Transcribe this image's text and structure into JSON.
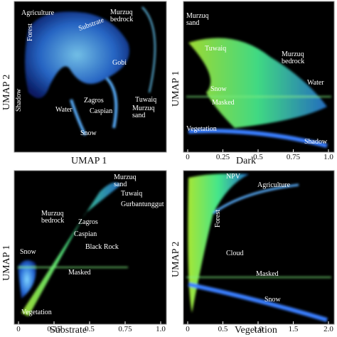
{
  "panels": [
    {
      "xlabel": "UMAP 1",
      "ylabel": "UMAP 2",
      "annotations": [
        "Agriculture",
        "Substrate",
        "Murzuq\nbedrock",
        "Forest",
        "Gobi",
        "Zagros",
        "Tuwaiq",
        "Caspian",
        "Murzuq\nsand",
        "Water",
        "Shadow",
        "Snow"
      ]
    },
    {
      "xlabel": "Dark",
      "ylabel": "UMAP 1",
      "xlim": [
        0,
        1
      ],
      "xticks": [
        0,
        0.25,
        0.5,
        0.75,
        {
          "value": 1,
          "label": "1.0"
        }
      ],
      "annotations": [
        "Murzuq\nsand",
        "Tuwaiq",
        "Murzuq\nbedrock",
        "Snow",
        "Masked",
        "Water",
        "Vegetation",
        "Shadow"
      ]
    },
    {
      "xlabel": "Substrate",
      "ylabel": "UMAP 1",
      "xlim": [
        0,
        1
      ],
      "xticks": [
        0,
        0.25,
        0.5,
        0.75,
        {
          "value": 1,
          "label": "1.0"
        }
      ],
      "annotations": [
        "Murzuq\nsand",
        "Tuwaiq",
        "Gurbantunggut",
        "Murzuq\nbedrock",
        "Zagros",
        "Caspian",
        "Black Rock",
        "Snow",
        "Masked",
        "Vegetation"
      ]
    },
    {
      "xlabel": "Vegetation",
      "ylabel": "UMAP 2",
      "xlim": [
        0,
        2
      ],
      "xticks": [
        0,
        0.5,
        {
          "value": 1,
          "label": "1.0"
        },
        1.5,
        {
          "value": 2,
          "label": "2.0"
        }
      ],
      "annotations": [
        "NPV",
        "Agriculture",
        "Forest",
        "Cloud",
        "Masked",
        "Snow"
      ]
    }
  ]
}
